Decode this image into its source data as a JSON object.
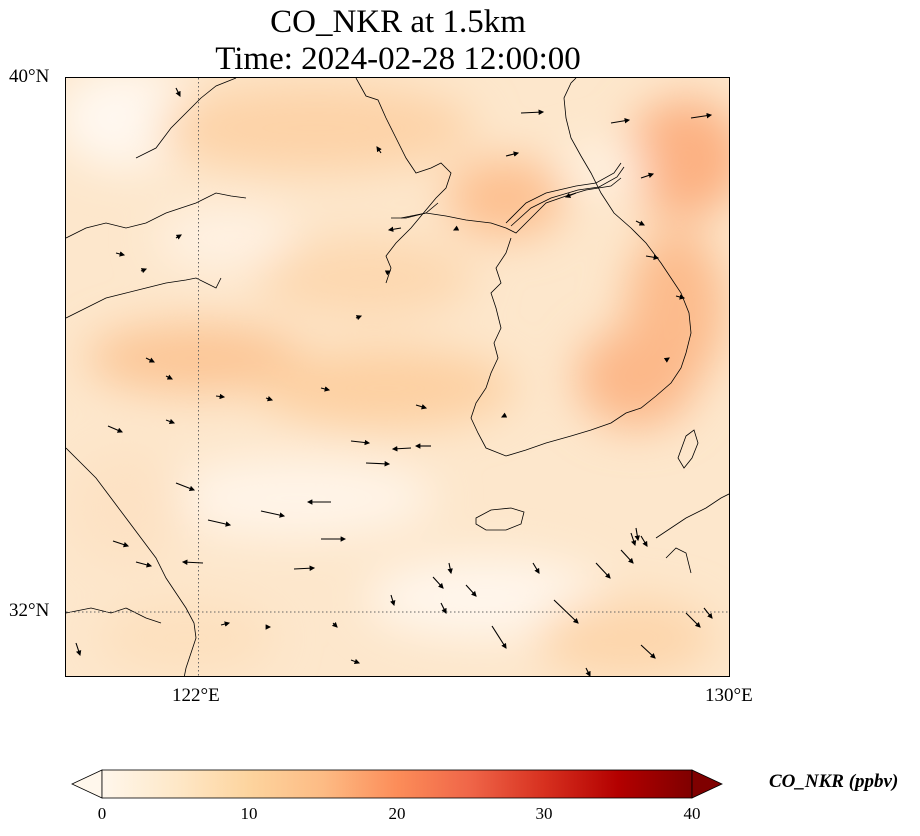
{
  "title": {
    "line1": "CO_NKR at 1.5km",
    "line2": "Time: 2024-02-28 12:00:00"
  },
  "map": {
    "lat_labels": [
      "40°N",
      "32°N"
    ],
    "lon_labels": [
      "122°E",
      "130°E"
    ],
    "extent": {
      "lon_min": 120,
      "lon_max": 130,
      "lat_min": 31,
      "lat_max": 40
    },
    "gridlines": {
      "lon": 122,
      "lat": 32,
      "style": "dotted"
    },
    "field_variable": "CO_NKR",
    "field_colormap": "OrRd",
    "wind_vectors": true,
    "coastlines": true
  },
  "colorbar": {
    "label": "CO_NKR (ppbv)",
    "ticks": [
      "0",
      "10",
      "20",
      "30",
      "40"
    ],
    "range": [
      0,
      40
    ],
    "extend": "both",
    "colors": [
      "#fff7ec",
      "#fee8c8",
      "#fdd49e",
      "#fdbb84",
      "#fc8d59",
      "#ef6548",
      "#d7301f",
      "#b30000",
      "#7f0000"
    ]
  }
}
